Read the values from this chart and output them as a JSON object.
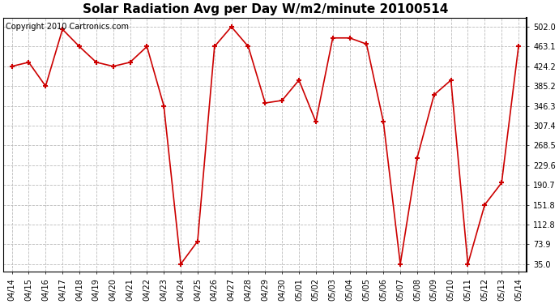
{
  "title": "Solar Radiation Avg per Day W/m2/minute 20100514",
  "copyright_text": "Copyright 2010 Cartronics.com",
  "line_color": "#cc0000",
  "marker_color": "#cc0000",
  "bg_color": "#ffffff",
  "grid_color": "#bbbbbb",
  "labels": [
    "04/14",
    "04/15",
    "04/16",
    "04/17",
    "04/18",
    "04/19",
    "04/20",
    "04/21",
    "04/22",
    "04/23",
    "04/24",
    "04/25",
    "04/26",
    "04/27",
    "04/28",
    "04/29",
    "04/30",
    "05/01",
    "05/02",
    "05/03",
    "05/04",
    "05/05",
    "05/06",
    "05/07",
    "05/08",
    "05/09",
    "05/10",
    "05/11",
    "05/12",
    "05/13",
    "05/14"
  ],
  "values": [
    424.2,
    432.1,
    385.2,
    497.0,
    463.1,
    432.1,
    424.2,
    432.1,
    463.1,
    346.3,
    35.0,
    80.0,
    463.1,
    502.0,
    463.1,
    352.0,
    357.0,
    397.0,
    315.0,
    480.0,
    480.0,
    468.0,
    315.0,
    35.0,
    244.0,
    368.0,
    397.0,
    35.0,
    151.8,
    195.0,
    463.1
  ],
  "yticks": [
    35.0,
    73.9,
    112.8,
    151.8,
    190.7,
    229.6,
    268.5,
    307.4,
    346.3,
    385.2,
    424.2,
    463.1,
    502.0
  ],
  "ylim": [
    20,
    520
  ],
  "title_fontsize": 11,
  "tick_fontsize": 7,
  "copyright_fontsize": 7
}
